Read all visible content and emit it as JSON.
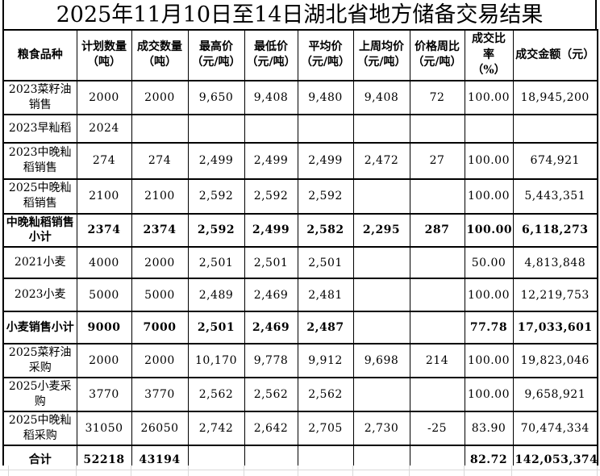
{
  "title": "2025年11月10日至14日湖北省地方储备交易结果",
  "table": {
    "columns": [
      "粮食品种",
      "计划数量\n（吨）",
      "成交数量\n（吨）",
      "最高价\n（元/吨）",
      "最低价\n（元/吨）",
      "平均价\n（元/吨）",
      "上周均价\n（元/吨）",
      "价格周比\n（元/吨）",
      "成交比率\n（%）",
      "成交金额（元）"
    ],
    "rows": [
      {
        "name": "2023菜籽油销售",
        "bold": false,
        "values": [
          "2000",
          "2000",
          "9,650",
          "9,408",
          "9,480",
          "9,408",
          "72",
          "100.00",
          "18,945,200"
        ]
      },
      {
        "name": "2023早籼稻",
        "bold": false,
        "values": [
          "2024",
          "",
          "",
          "",
          "",
          "",
          "",
          "",
          ""
        ]
      },
      {
        "name": "2023中晚籼稻销售",
        "bold": false,
        "values": [
          "274",
          "274",
          "2,499",
          "2,499",
          "2,499",
          "2,472",
          "27",
          "100.00",
          "674,921"
        ]
      },
      {
        "name": "2025中晚籼稻销售",
        "bold": false,
        "values": [
          "2100",
          "2100",
          "2,592",
          "2,592",
          "2,592",
          "",
          "",
          "100.00",
          "5,443,351"
        ]
      },
      {
        "name": "中晚籼稻销售小计",
        "bold": true,
        "values": [
          "2374",
          "2374",
          "2,592",
          "2,499",
          "2,582",
          "2,295",
          "287",
          "100.00",
          "6,118,273"
        ]
      },
      {
        "name": "2021小麦",
        "bold": false,
        "values": [
          "4000",
          "2000",
          "2,501",
          "2,501",
          "2,501",
          "",
          "",
          "50.00",
          "4,813,848"
        ]
      },
      {
        "name": "2023小麦",
        "bold": false,
        "values": [
          "5000",
          "5000",
          "2,489",
          "2,469",
          "2,481",
          "",
          "",
          "100.00",
          "12,219,753"
        ]
      },
      {
        "name": "小麦销售小计",
        "bold": true,
        "values": [
          "9000",
          "7000",
          "2,501",
          "2,469",
          "2,487",
          "",
          "",
          "77.78",
          "17,033,601"
        ]
      },
      {
        "name": "2025菜籽油采购",
        "bold": false,
        "values": [
          "2000",
          "2000",
          "10,170",
          "9,778",
          "9,912",
          "9,698",
          "214",
          "100.00",
          "19,823,046"
        ]
      },
      {
        "name": "2025小麦采购",
        "bold": false,
        "values": [
          "3770",
          "3770",
          "2,562",
          "2,562",
          "2,562",
          "",
          "",
          "100.00",
          "9,658,921"
        ]
      },
      {
        "name": "2025中晚籼稻采购",
        "bold": false,
        "values": [
          "31050",
          "26050",
          "2,742",
          "2,642",
          "2,705",
          "2,730",
          "-25",
          "83.90",
          "70,474,334"
        ]
      },
      {
        "name": "合计",
        "bold": true,
        "values": [
          "52218",
          "43194",
          "",
          "",
          "",
          "",
          "",
          "82.72",
          "142,053,374"
        ]
      }
    ]
  },
  "colors": {
    "background": "#ffffff",
    "text": "#000000",
    "table_border": "#000000",
    "spreadsheet_gridline": "#d9d9d9"
  }
}
